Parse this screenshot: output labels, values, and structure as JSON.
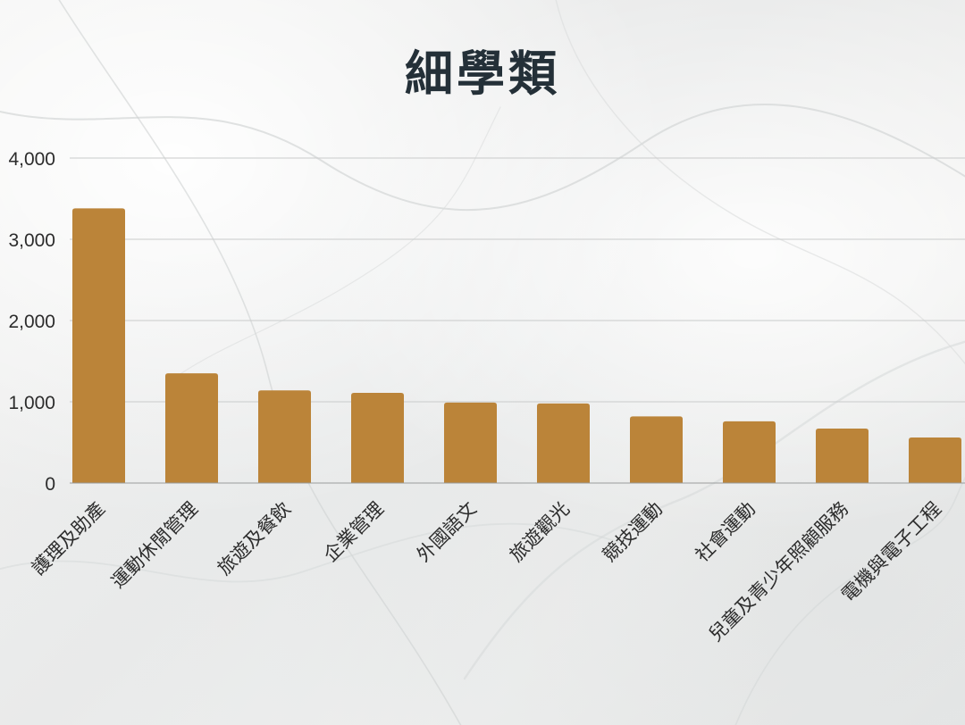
{
  "chart_data": {
    "type": "bar",
    "title": "細學類",
    "categories": [
      "護理及助產",
      "運動休閒管理",
      "旅遊及餐飲",
      "企業管理",
      "外國語文",
      "旅遊觀光",
      "競技運動",
      "社會運動",
      "兒童及青少年照顧服務",
      "電機與電子工程"
    ],
    "values": [
      3380,
      1350,
      1140,
      1110,
      990,
      980,
      820,
      760,
      670,
      560
    ],
    "ylim": [
      0,
      4000
    ],
    "yticks": [
      "0",
      "1,000",
      "2,000",
      "3,000",
      "4,000"
    ],
    "ytick_values": [
      0,
      1000,
      2000,
      3000,
      4000
    ],
    "grid": true,
    "bar_color": "#bb8439"
  }
}
